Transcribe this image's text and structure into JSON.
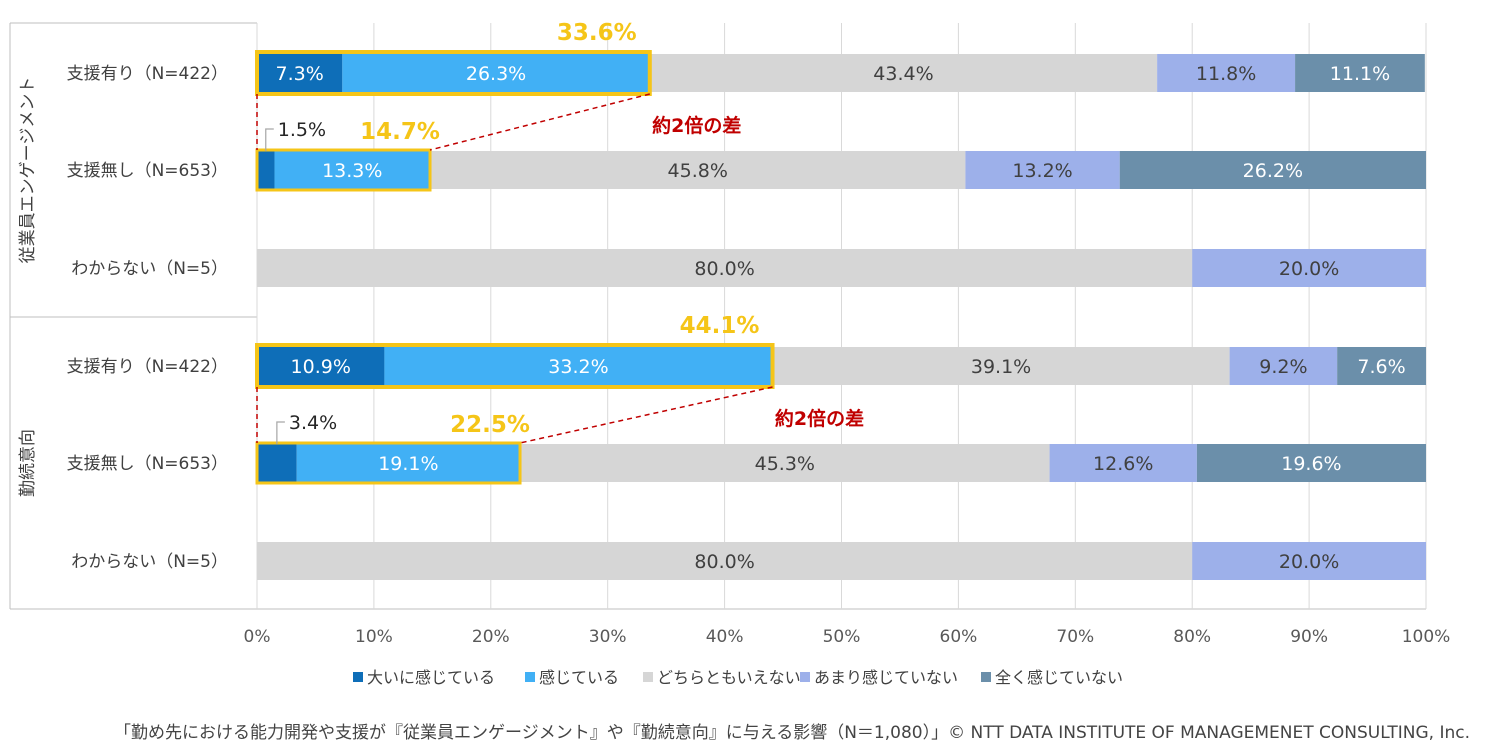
{
  "chart_data": {
    "type": "bar",
    "orientation": "horizontal",
    "stacked": "percent",
    "xlim": [
      0,
      100
    ],
    "x_ticks": [
      "0%",
      "10%",
      "20%",
      "30%",
      "40%",
      "50%",
      "60%",
      "70%",
      "80%",
      "90%",
      "100%"
    ],
    "grid": "vertical",
    "legend_position": "bottom",
    "groups": [
      {
        "label": "従業員エンゲージメント",
        "rows": [
          {
            "label": "支援有り（N=422）",
            "values": [
              7.3,
              26.3,
              43.4,
              11.8,
              11.1
            ],
            "labels": [
              "7.3%",
              "26.3%",
              "43.4%",
              "11.8%",
              "11.1%"
            ],
            "highlight_total": "33.6%"
          },
          {
            "label": "支援無し（N=653）",
            "values": [
              1.5,
              13.3,
              45.8,
              13.2,
              26.2
            ],
            "labels": [
              "1.5%",
              "13.3%",
              "45.8%",
              "13.2%",
              "26.2%"
            ],
            "highlight_total": "14.7%"
          },
          {
            "label": "わからない（N=5）",
            "values": [
              0,
              0,
              80.0,
              20.0,
              0
            ],
            "labels": [
              "",
              "",
              "80.0%",
              "20.0%",
              ""
            ]
          }
        ],
        "annotation": "約2倍の差"
      },
      {
        "label": "勤続意向",
        "rows": [
          {
            "label": "支援有り（N=422）",
            "values": [
              10.9,
              33.2,
              39.1,
              9.2,
              7.6
            ],
            "labels": [
              "10.9%",
              "33.2%",
              "39.1%",
              "9.2%",
              "7.6%"
            ],
            "highlight_total": "44.1%"
          },
          {
            "label": "支援無し（N=653）",
            "values": [
              3.4,
              19.1,
              45.3,
              12.6,
              19.6
            ],
            "labels": [
              "3.4%",
              "19.1%",
              "45.3%",
              "12.6%",
              "19.6%"
            ],
            "highlight_total": "22.5%"
          },
          {
            "label": "わからない（N=5）",
            "values": [
              0,
              0,
              80.0,
              20.0,
              0
            ],
            "labels": [
              "",
              "",
              "80.0%",
              "20.0%",
              ""
            ]
          }
        ],
        "annotation": "約2倍の差"
      }
    ],
    "series": [
      {
        "name": "大いに感じている",
        "color": "#0e6eb8"
      },
      {
        "name": "感じている",
        "color": "#41b0f5"
      },
      {
        "name": "どちらともいえない",
        "color": "#d6d6d6"
      },
      {
        "name": "あまり感じていない",
        "color": "#9db0ea"
      },
      {
        "name": "全く感じていない",
        "color": "#6b8faa"
      }
    ],
    "highlight_color": "#f5c518",
    "annotation_color": "#c00000"
  },
  "footer": "「勤め先における能力開発や支援が『従業員エンゲージメント』や『勤続意向』に与える影響（N＝1,080）」© NTT DATA INSTITUTE OF MANAGEMENET CONSULTING, Inc."
}
